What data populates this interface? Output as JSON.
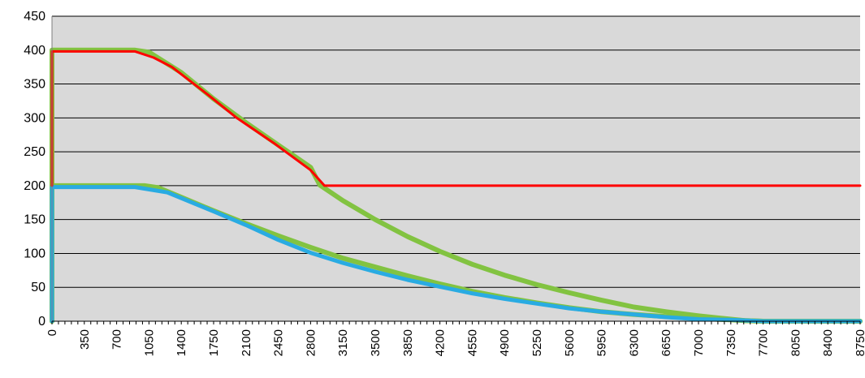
{
  "chart_data": {
    "type": "line",
    "title": "",
    "xlabel": "",
    "ylabel": "",
    "xlim": [
      0,
      8750
    ],
    "ylim": [
      0,
      450
    ],
    "yticks": [
      0,
      50,
      100,
      150,
      200,
      250,
      300,
      350,
      400,
      450
    ],
    "xticks": [
      0,
      350,
      700,
      1050,
      1400,
      1750,
      2100,
      2450,
      2800,
      3150,
      3500,
      3850,
      4200,
      4550,
      4900,
      5250,
      5600,
      5950,
      6300,
      6650,
      7000,
      7350,
      7700,
      8050,
      8400,
      8750
    ],
    "xticks_minor_step": 70,
    "grid": "horizontal",
    "plot_background": "#d9d9d9",
    "legend": "none",
    "series": [
      {
        "color": "#82c341",
        "width": 6,
        "points": [
          [
            0,
            0
          ],
          [
            0,
            200
          ],
          [
            1000,
            200
          ],
          [
            1150,
            197
          ],
          [
            1400,
            183
          ],
          [
            1750,
            163
          ],
          [
            2100,
            144
          ],
          [
            2450,
            126
          ],
          [
            2800,
            109
          ],
          [
            3150,
            93
          ],
          [
            3500,
            80
          ],
          [
            3850,
            67
          ],
          [
            4200,
            55
          ],
          [
            4550,
            44
          ],
          [
            4900,
            35
          ],
          [
            5250,
            27
          ],
          [
            5600,
            20
          ],
          [
            5950,
            14
          ],
          [
            6300,
            10
          ],
          [
            6650,
            7
          ],
          [
            7000,
            4
          ],
          [
            7350,
            2
          ],
          [
            7500,
            1
          ],
          [
            7700,
            0
          ],
          [
            8750,
            0
          ]
        ]
      },
      {
        "color": "#82c341",
        "width": 6,
        "points": [
          [
            0,
            0
          ],
          [
            0,
            400
          ],
          [
            900,
            400
          ],
          [
            1050,
            397
          ],
          [
            1400,
            367
          ],
          [
            1750,
            328
          ],
          [
            2100,
            293
          ],
          [
            2450,
            260
          ],
          [
            2800,
            227
          ],
          [
            2900,
            201
          ],
          [
            3150,
            178
          ],
          [
            3500,
            150
          ],
          [
            3850,
            125
          ],
          [
            4200,
            103
          ],
          [
            4550,
            84
          ],
          [
            4900,
            68
          ],
          [
            5250,
            54
          ],
          [
            5600,
            42
          ],
          [
            5950,
            31
          ],
          [
            6300,
            21
          ],
          [
            6650,
            14
          ],
          [
            7000,
            8
          ],
          [
            7350,
            3
          ],
          [
            7500,
            1
          ],
          [
            7700,
            0
          ],
          [
            8750,
            0
          ]
        ]
      },
      {
        "color": "#29abe2",
        "width": 5,
        "points": [
          [
            0,
            0
          ],
          [
            0,
            198
          ],
          [
            900,
            198
          ],
          [
            1250,
            190
          ],
          [
            1750,
            162
          ],
          [
            2100,
            142
          ],
          [
            2450,
            120
          ],
          [
            2800,
            101
          ],
          [
            3150,
            86
          ],
          [
            3500,
            73
          ],
          [
            3850,
            61
          ],
          [
            4200,
            51
          ],
          [
            4550,
            41
          ],
          [
            4900,
            33
          ],
          [
            5250,
            26
          ],
          [
            5600,
            19
          ],
          [
            5950,
            14
          ],
          [
            6300,
            10
          ],
          [
            6650,
            6
          ],
          [
            7000,
            3
          ],
          [
            7350,
            2
          ],
          [
            7700,
            0
          ],
          [
            8750,
            0
          ]
        ]
      },
      {
        "color": "#ff0000",
        "width": 3,
        "points": [
          [
            0,
            200
          ],
          [
            0,
            398
          ],
          [
            900,
            398
          ],
          [
            1100,
            389
          ],
          [
            1300,
            375
          ],
          [
            1700,
            333
          ],
          [
            2000,
            300
          ],
          [
            2400,
            263
          ],
          [
            2800,
            223
          ],
          [
            2950,
            200
          ],
          [
            8750,
            200
          ]
        ]
      }
    ]
  }
}
